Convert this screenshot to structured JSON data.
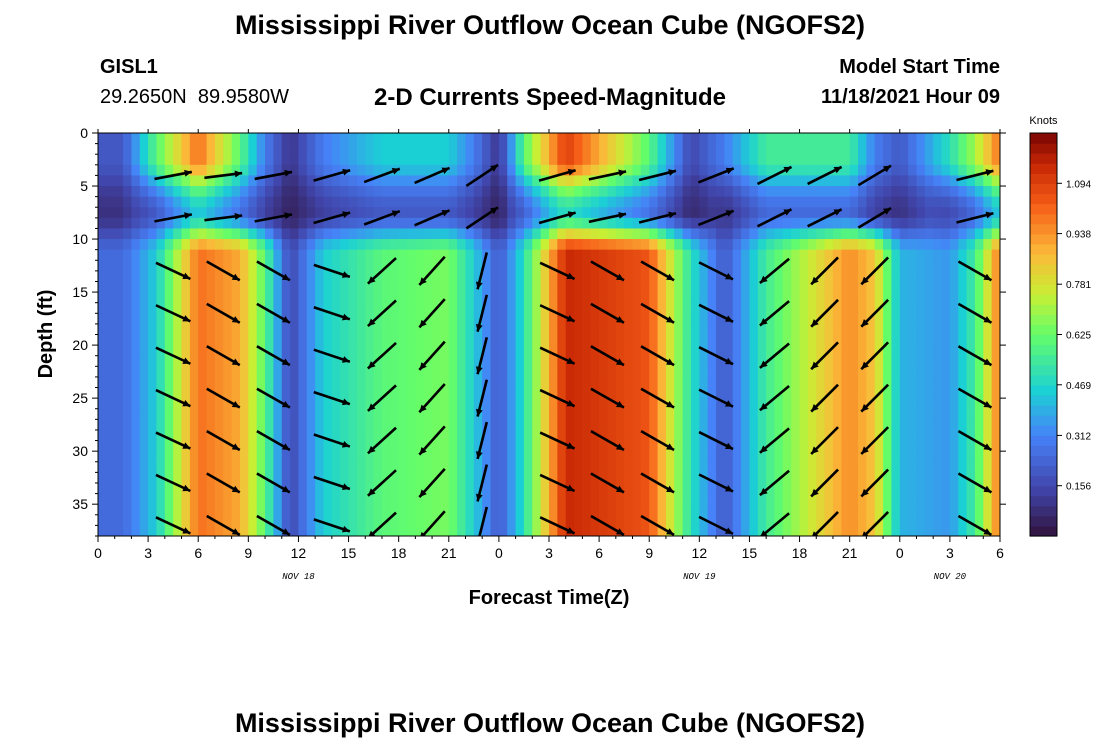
{
  "header": {
    "title": "Mississippi River Outflow Ocean Cube (NGOFS2)",
    "station": "GISL1",
    "coords": "29.2650N  89.9580W",
    "subtitle": "2-D Currents Speed-Magnitude",
    "model_start_label": "Model Start Time",
    "model_start_value": "11/18/2021 Hour 09"
  },
  "footer": {
    "title": "Mississippi River Outflow Ocean Cube (NGOFS2)"
  },
  "chart_data": {
    "type": "heatmap",
    "title": "2-D Currents Speed-Magnitude",
    "xlabel": "Forecast Time(Z)",
    "ylabel": "Depth (ft)",
    "x_hours_range": [
      0,
      54
    ],
    "x_tick_labels": [
      "0",
      "3",
      "6",
      "9",
      "12",
      "15",
      "18",
      "21",
      "0",
      "3",
      "6",
      "9",
      "12",
      "15",
      "18",
      "21",
      "0",
      "3",
      "6"
    ],
    "date_labels": [
      {
        "label": "NOV 18",
        "hour": 12
      },
      {
        "label": "NOV 19",
        "hour": 36
      },
      {
        "label": "NOV 20",
        "hour": 51
      }
    ],
    "y_range": [
      0,
      38
    ],
    "y_ticks": [
      0,
      5,
      10,
      15,
      20,
      25,
      30,
      35
    ],
    "y_inverted": true,
    "colorbar": {
      "unit": "Knots",
      "range": [
        0,
        1.25
      ],
      "tick_values": [
        0.156,
        0.312,
        0.469,
        0.625,
        0.781,
        0.938,
        1.094
      ],
      "tick_labels": [
        "0.156",
        "0.312",
        "0.469",
        "0.625",
        "0.781",
        "0.938",
        "1.094"
      ]
    },
    "speed_profile": {
      "hours": [
        0,
        1.5,
        3.5,
        6,
        8.5,
        10,
        11.5,
        13.5,
        17,
        21,
        22.5,
        24,
        25.5,
        28,
        33,
        35.5,
        37.5,
        40,
        45,
        46.5,
        48,
        51,
        52.5,
        54
      ],
      "upper_speed_knots": [
        0.2,
        0.2,
        0.6,
        1.0,
        0.6,
        0.3,
        0.1,
        0.3,
        0.45,
        0.45,
        0.3,
        0.1,
        0.6,
        1.1,
        0.6,
        0.15,
        0.3,
        0.55,
        0.55,
        0.3,
        0.2,
        0.5,
        0.7,
        1.0
      ],
      "lower_speed_knots": [
        0.25,
        0.25,
        0.45,
        1.0,
        0.9,
        0.6,
        0.15,
        0.45,
        0.6,
        0.65,
        0.45,
        0.2,
        0.5,
        1.15,
        1.05,
        0.5,
        0.2,
        0.55,
        0.95,
        0.85,
        0.4,
        0.35,
        0.55,
        1.0
      ]
    },
    "vectors": {
      "hours": [
        4.5,
        7.5,
        10.5,
        14,
        17,
        20,
        23,
        27.5,
        30.5,
        33.5,
        37,
        40.5,
        43.5,
        46.5,
        52.5
      ],
      "depth_levels_ft": [
        4,
        8,
        13,
        17,
        21,
        25,
        29,
        33,
        37
      ],
      "upper_u": [
        0.8,
        0.8,
        0.8,
        0.7,
        0.8,
        0.7,
        0.6,
        0.7,
        0.7,
        0.6,
        0.5,
        0.4,
        0.4,
        0.5,
        0.8
      ],
      "upper_v": [
        0.15,
        0.1,
        0.15,
        0.2,
        0.3,
        0.3,
        0.4,
        0.2,
        0.15,
        0.15,
        0.2,
        0.2,
        0.2,
        0.3,
        0.2
      ],
      "lower_u": [
        0.75,
        0.7,
        0.7,
        0.6,
        -0.55,
        -0.45,
        -0.2,
        0.75,
        0.7,
        0.7,
        0.6,
        -0.6,
        -0.55,
        -0.5,
        0.7
      ],
      "lower_v": [
        -0.35,
        -0.4,
        -0.4,
        -0.2,
        -0.5,
        -0.5,
        -0.8,
        -0.35,
        -0.4,
        -0.4,
        -0.3,
        -0.5,
        -0.55,
        -0.5,
        -0.4
      ]
    }
  }
}
